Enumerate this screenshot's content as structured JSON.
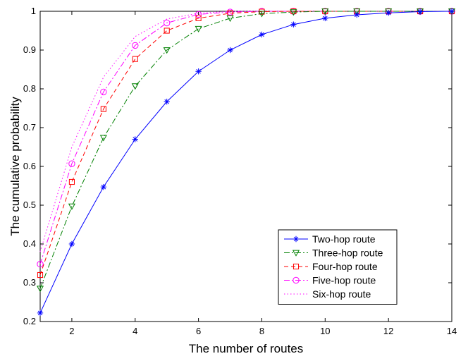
{
  "chart_data": {
    "type": "line",
    "xlabel": "The number of routes",
    "ylabel": "The cumulative probability",
    "xlim": [
      1,
      14
    ],
    "ylim": [
      0.2,
      1.0
    ],
    "xticks": [
      "2",
      "4",
      "6",
      "8",
      "10",
      "12",
      "14"
    ],
    "yticks": [
      "0.2",
      "0.3",
      "0.4",
      "0.5",
      "0.6",
      "0.7",
      "0.8",
      "0.9",
      "1"
    ],
    "grid": false,
    "legend_position": "lower-right",
    "x": [
      1,
      2,
      3,
      4,
      5,
      6,
      7,
      8,
      9,
      10,
      11,
      12,
      13,
      14
    ],
    "series": [
      {
        "name": "Two-hop route",
        "color": "#0000ff",
        "dash": "solid",
        "marker": "asterisk",
        "values": [
          0.222,
          0.4,
          0.547,
          0.67,
          0.767,
          0.845,
          0.9,
          0.94,
          0.966,
          0.982,
          0.991,
          0.996,
          0.999,
          1.0
        ]
      },
      {
        "name": "Three-hop route",
        "color": "#008000",
        "dash": "dashdot",
        "marker": "triangle-down",
        "values": [
          0.285,
          0.497,
          0.674,
          0.807,
          0.9,
          0.955,
          0.982,
          0.994,
          0.998,
          1.0,
          1.0,
          1.0,
          1.0,
          1.0
        ]
      },
      {
        "name": "Four-hop route",
        "color": "#ff0000",
        "dash": "dashed",
        "marker": "square",
        "values": [
          0.32,
          0.56,
          0.748,
          0.877,
          0.95,
          0.982,
          0.995,
          0.999,
          1.0,
          1.0,
          1.0,
          1.0,
          1.0,
          1.0
        ]
      },
      {
        "name": "Five-hop route",
        "color": "#ff00ff",
        "dash": "dashdot",
        "marker": "circle",
        "values": [
          0.348,
          0.607,
          0.792,
          0.912,
          0.97,
          0.992,
          0.998,
          1.0,
          1.0,
          1.0,
          1.0,
          1.0,
          1.0,
          1.0
        ]
      },
      {
        "name": "Six-hop route",
        "color": "#ff00ff",
        "dash": "dotted",
        "marker": "none",
        "values": [
          0.38,
          0.65,
          0.83,
          0.935,
          0.98,
          0.995,
          1.0,
          1.0,
          1.0,
          1.0,
          1.0,
          1.0,
          1.0,
          1.0
        ]
      }
    ]
  }
}
